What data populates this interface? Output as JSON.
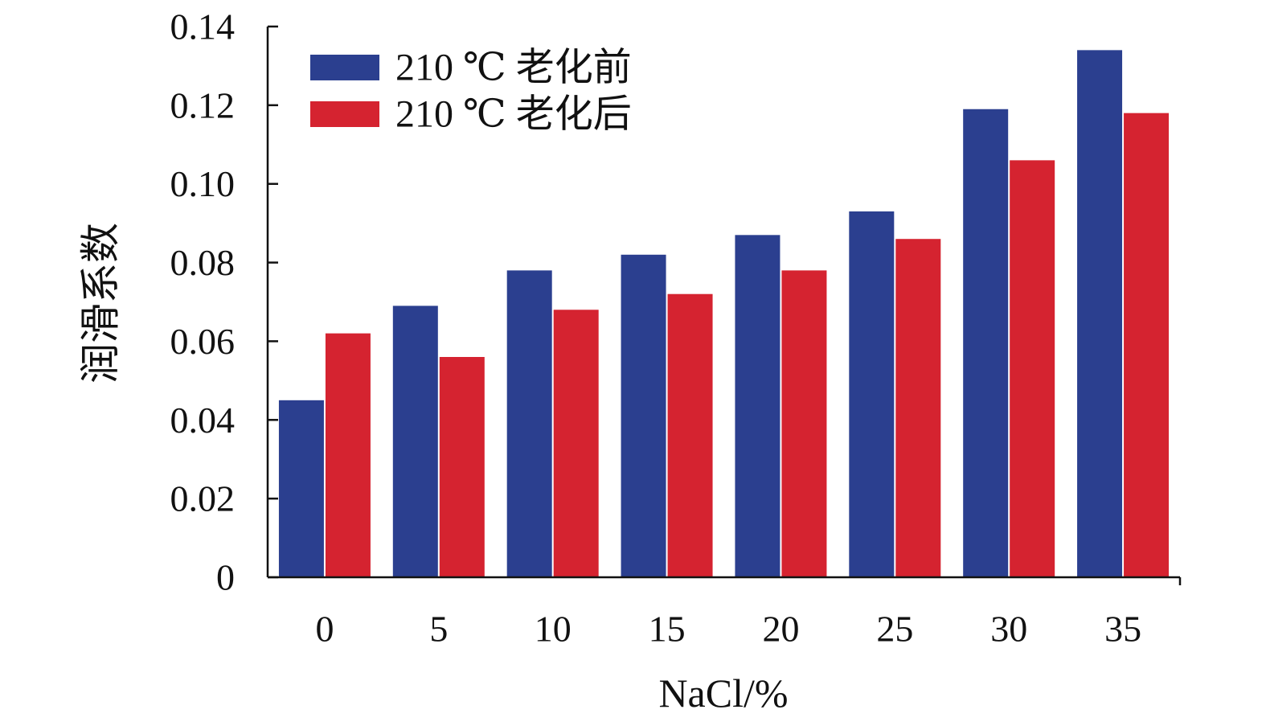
{
  "chart_data": {
    "type": "bar",
    "categories": [
      "0",
      "5",
      "10",
      "15",
      "20",
      "25",
      "30",
      "35"
    ],
    "series": [
      {
        "name": "210 ℃ 老化前",
        "color": "#2b3f8f",
        "values": [
          0.045,
          0.069,
          0.078,
          0.082,
          0.087,
          0.093,
          0.119,
          0.134
        ]
      },
      {
        "name": "210 ℃ 老化后",
        "color": "#d52330",
        "values": [
          0.062,
          0.056,
          0.068,
          0.072,
          0.078,
          0.086,
          0.106,
          0.118
        ]
      }
    ],
    "xlabel": "NaCl/%",
    "ylabel": "润滑系数",
    "ylim": [
      0,
      0.14
    ],
    "yticks": [
      0,
      0.02,
      0.04,
      0.06,
      0.08,
      0.1,
      0.12,
      0.14
    ],
    "ytick_labels": [
      "0",
      "0.02",
      "0.04",
      "0.06",
      "0.08",
      "0.10",
      "0.12",
      "0.14"
    ],
    "legend_position": "top-left",
    "grid": false
  }
}
